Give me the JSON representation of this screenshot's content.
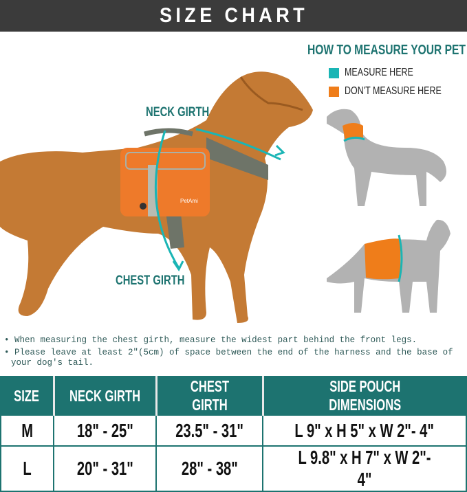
{
  "title": "SIZE CHART",
  "legend": {
    "heading": "HOW TO MEASURE YOUR PET",
    "items": [
      {
        "label": "MEASURE HERE",
        "color": "#1ab5b5"
      },
      {
        "label": "DON'T MEASURE HERE",
        "color": "#ef7d1a"
      }
    ]
  },
  "labels": {
    "neck": "NECK GIRTH",
    "chest": "CHEST GIRTH"
  },
  "brand_logo": "PetAmi",
  "notes": [
    "When measuring the chest girth, measure the widest part behind the front legs.",
    "Please leave at least 2\"(5cm) of space between the end of the harness and the base of your dog's tail."
  ],
  "table": {
    "headers": [
      "SIZE",
      "NECK GIRTH",
      "CHEST GIRTH",
      "SIDE POUCH DIMENSIONS"
    ],
    "rows": [
      [
        "M",
        "18\" - 25\"",
        "23.5\" - 31\"",
        "L 9\" x H 5\" x W 2\"- 4\""
      ],
      [
        "L",
        "20\" - 31\"",
        "28\" - 38\"",
        "L 9.8\" x H 7\" x W 2\"- 4\""
      ]
    ]
  },
  "colors": {
    "teal": "#1d7370",
    "header_bg": "#3b3b3b",
    "orange": "#ef7d1a"
  }
}
